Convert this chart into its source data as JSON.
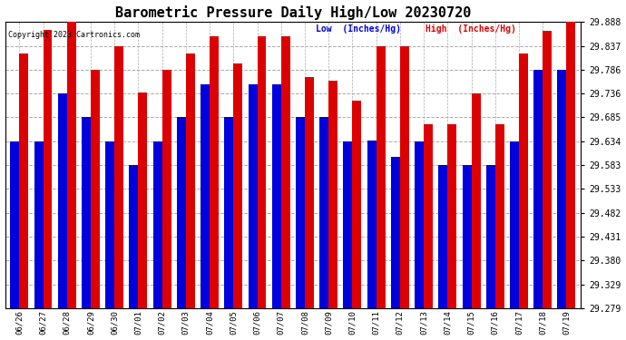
{
  "title": "Barometric Pressure Daily High/Low 20230720",
  "copyright": "Copyright 2023 Cartronics.com",
  "legend_low": "Low  (Inches/Hg)",
  "legend_high": "High  (Inches/Hg)",
  "dates": [
    "06/26",
    "06/27",
    "06/28",
    "06/29",
    "06/30",
    "07/01",
    "07/02",
    "07/03",
    "07/04",
    "07/05",
    "07/06",
    "07/07",
    "07/08",
    "07/09",
    "07/10",
    "07/11",
    "07/12",
    "07/13",
    "07/14",
    "07/15",
    "07/16",
    "07/17",
    "07/18",
    "07/19"
  ],
  "low_values": [
    29.634,
    29.634,
    29.736,
    29.685,
    29.634,
    29.583,
    29.634,
    29.685,
    29.756,
    29.685,
    29.756,
    29.756,
    29.685,
    29.685,
    29.634,
    29.635,
    29.6,
    29.634,
    29.583,
    29.583,
    29.583,
    29.634,
    29.786,
    29.786
  ],
  "high_values": [
    29.82,
    29.87,
    29.888,
    29.786,
    29.837,
    29.737,
    29.786,
    29.82,
    29.857,
    29.8,
    29.857,
    29.857,
    29.77,
    29.762,
    29.72,
    29.837,
    29.837,
    29.67,
    29.67,
    29.736,
    29.67,
    29.82,
    29.869,
    29.888
  ],
  "ymin": 29.279,
  "ymax": 29.888,
  "yticks": [
    29.279,
    29.329,
    29.38,
    29.431,
    29.482,
    29.533,
    29.583,
    29.634,
    29.685,
    29.736,
    29.786,
    29.837,
    29.888
  ],
  "bar_color_low": "#0000dd",
  "bar_color_high": "#dd0000",
  "bg_color": "#ffffff",
  "grid_color": "#aaaaaa",
  "title_color": "#000000",
  "copyright_color": "#000000",
  "legend_low_color": "#0000dd",
  "legend_high_color": "#dd0000"
}
